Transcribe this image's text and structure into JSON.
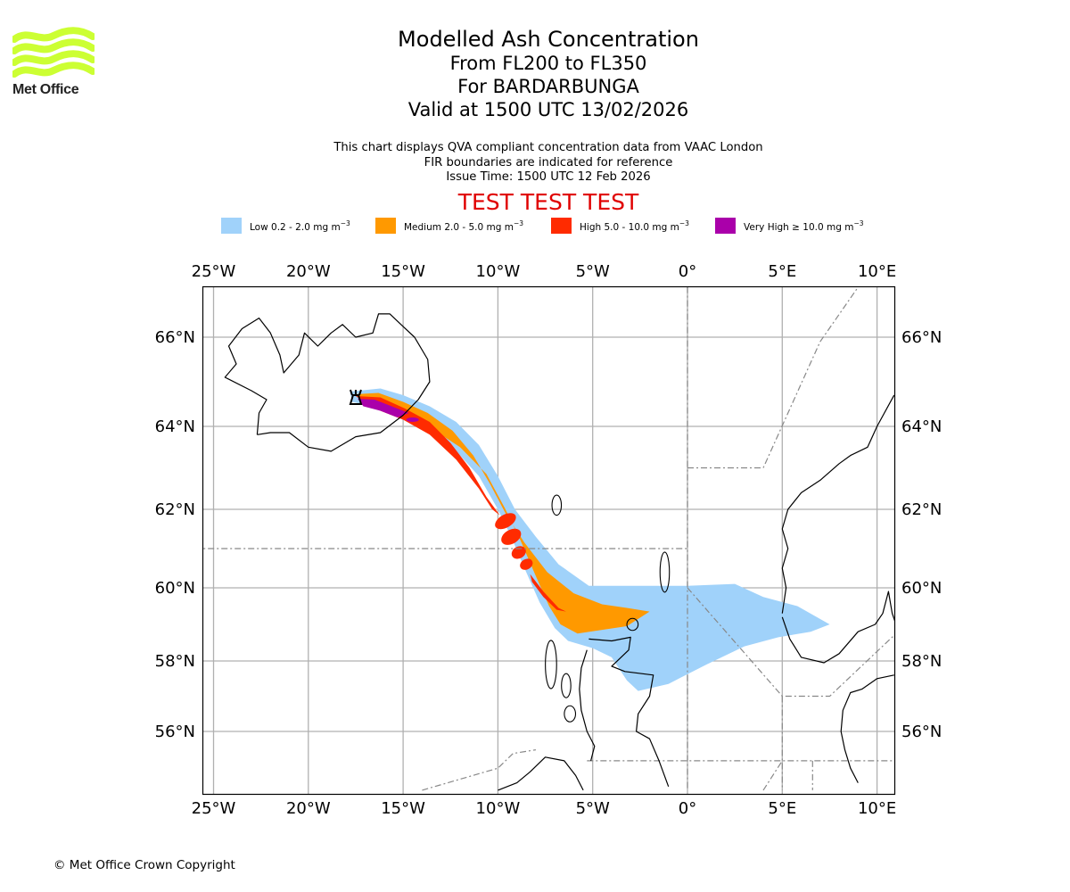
{
  "logo": {
    "name": "Met Office",
    "color": "#ccff33"
  },
  "header": {
    "title": "Modelled Ash Concentration",
    "levels": "From FL200 to FL350",
    "volcano": "For BARDARBUNGA",
    "valid": "Valid at 1500 UTC 13/02/2026"
  },
  "subtitle": {
    "line1": "This chart displays QVA compliant concentration data from VAAC London",
    "line2": "FIR boundaries are indicated for reference",
    "line3": "Issue Time: 1500 UTC 12 Feb 2026"
  },
  "test_banner": "TEST TEST TEST",
  "legend": [
    {
      "label": "Low 0.2 - 2.0 mg m",
      "exp": "−3",
      "color": "#a0d2fa"
    },
    {
      "label": "Medium 2.0 - 5.0 mg m",
      "exp": "−3",
      "color": "#ff9900"
    },
    {
      "label": "High 5.0 - 10.0 mg m",
      "exp": "−3",
      "color": "#ff2b00"
    },
    {
      "label": "Very High ≥ 10.0 mg m",
      "exp": "−3",
      "color": "#aa00aa"
    }
  ],
  "copyright": "© Met Office Crown Copyright",
  "chart_data": {
    "type": "heatmap",
    "title": "Modelled Ash Concentration",
    "projection": "map (lon/lat)",
    "extent": {
      "lon": [
        -25.7,
        10.9
      ],
      "lat": [
        54.5,
        67.2
      ]
    },
    "grid": true,
    "x_ticks": [
      "25°W",
      "20°W",
      "15°W",
      "10°W",
      "5°W",
      "0°",
      "5°E",
      "10°E"
    ],
    "x_tick_values": [
      -25,
      -20,
      -15,
      -10,
      -5,
      0,
      5,
      10
    ],
    "y_ticks": [
      "66°N",
      "64°N",
      "62°N",
      "60°N",
      "58°N",
      "56°N"
    ],
    "y_tick_values": [
      66,
      64,
      62,
      60,
      58,
      56
    ],
    "volcano": {
      "name": "BARDARBUNGA",
      "lon": -17.5,
      "lat": 64.6
    },
    "categories": [
      "Low",
      "Medium",
      "High",
      "Very High"
    ],
    "thresholds_mg_m3": [
      0.2,
      2.0,
      5.0,
      10.0
    ],
    "plume_extent": {
      "Low": "Iceland (~17.5°W,64.7°N) SE to Scotland / North Sea, reaching ~7.5°E, ~57.2°N",
      "Medium": "Iceland SE to ~2.5°W, 59.3°N",
      "High": "Iceland SE to ~6.5°W, 59.4°N",
      "Very High": "Near source ~17.5°W to ~14.5°W, ~64.3-64.6°N"
    },
    "legend_position": "top"
  }
}
